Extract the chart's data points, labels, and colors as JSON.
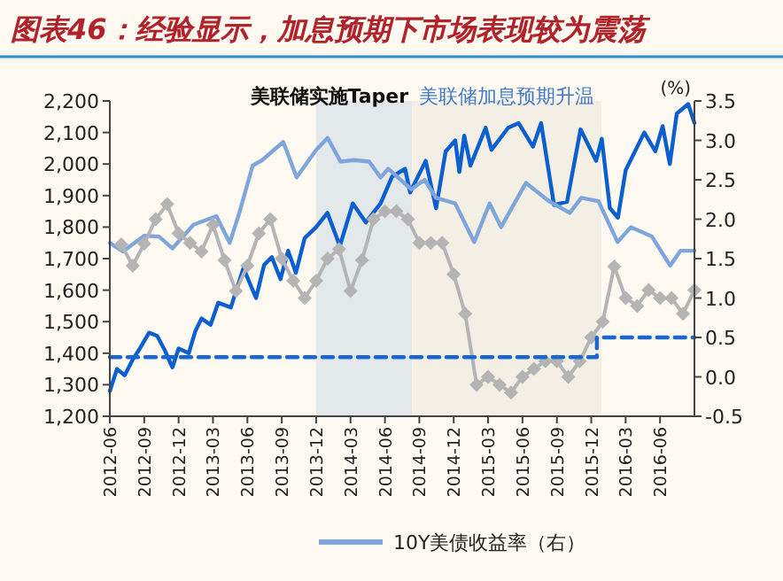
{
  "chart_data": {
    "type": "line",
    "title": "图表46：经验显示，加息预期下市场表现较为震荡",
    "y2label": "(%)",
    "xlim": [
      "2012-06",
      "2016-09"
    ],
    "xticks": [
      "2012-06",
      "2012-09",
      "2012-12",
      "2013-03",
      "2013-06",
      "2013-09",
      "2013-12",
      "2014-03",
      "2014-06",
      "2014-09",
      "2014-12",
      "2015-03",
      "2015-06",
      "2015-09",
      "2015-12",
      "2016-03",
      "2016-06"
    ],
    "ylim": [
      1200,
      2200
    ],
    "yticks": [
      {
        "value": 1200,
        "label": "1,200"
      },
      {
        "value": 1300,
        "label": "1,300"
      },
      {
        "value": 1400,
        "label": "1,400"
      },
      {
        "value": 1500,
        "label": "1,500"
      },
      {
        "value": 1600,
        "label": "1,600"
      },
      {
        "value": 1700,
        "label": "1,700"
      },
      {
        "value": 1800,
        "label": "1,800"
      },
      {
        "value": 1900,
        "label": "1,900"
      },
      {
        "value": 2000,
        "label": "2,000"
      },
      {
        "value": 2100,
        "label": "2,100"
      },
      {
        "value": 2200,
        "label": "2,200"
      }
    ],
    "y2lim": [
      -0.5,
      3.5
    ],
    "y2ticks": [
      -0.5,
      {
        "value": 0,
        "label": "0.0"
      },
      0.5,
      {
        "value": 1,
        "label": "1.0"
      },
      1.5,
      {
        "value": 2,
        "label": "2.0"
      },
      2.5,
      {
        "value": 3,
        "label": "3.0"
      },
      3.5
    ],
    "legend": "bottom",
    "grid": false,
    "bands": [
      {
        "axis": "x",
        "from": "2013-12",
        "to": "2014-08-12",
        "label": "美联储实施Taper",
        "color": "#e3e8ea"
      },
      {
        "axis": "x",
        "from": "2014-08-12",
        "to": "2015-12-28",
        "label": "美联储加息预期升温",
        "color": "#f3efe5"
      }
    ],
    "series": [
      {
        "type": "line",
        "color": "#0b5fcf",
        "axis": "y",
        "x": [
          "2012-06-01",
          "2012-06-20",
          "2012-07-10",
          "2012-08-01",
          "2012-08-20",
          "2012-09-14",
          "2012-10-05",
          "2012-10-25",
          "2012-11-15",
          "2012-12-01",
          "2012-12-28",
          "2013-01-15",
          "2013-02-01",
          "2013-02-25",
          "2013-03-15",
          "2013-04-18",
          "2013-05-21",
          "2013-06-24",
          "2013-07-15",
          "2013-08-05",
          "2013-08-28",
          "2013-09-18",
          "2013-10-08",
          "2013-11-01",
          "2013-12-01",
          "2013-12-31",
          "2014-02-03",
          "2014-03-07",
          "2014-04-11",
          "2014-05-20",
          "2014-06-20",
          "2014-07-24",
          "2014-08-07",
          "2014-09-18",
          "2014-10-15",
          "2014-11-10",
          "2014-12-05",
          "2014-12-16",
          "2014-12-29",
          "2015-01-15",
          "2015-02-25",
          "2015-03-10",
          "2015-04-24",
          "2015-05-21",
          "2015-06-29",
          "2015-07-20",
          "2015-08-24",
          "2015-09-28",
          "2015-11-03",
          "2015-12-14",
          "2015-12-29",
          "2016-01-20",
          "2016-02-11",
          "2016-03-01",
          "2016-04-20",
          "2016-05-19",
          "2016-06-08",
          "2016-06-27",
          "2016-07-15",
          "2016-08-15",
          "2016-09-01"
        ],
        "values": [
          1280,
          1350,
          1330,
          1380,
          1415,
          1465,
          1455,
          1410,
          1355,
          1415,
          1400,
          1470,
          1510,
          1490,
          1560,
          1545,
          1670,
          1575,
          1680,
          1705,
          1635,
          1725,
          1655,
          1765,
          1800,
          1845,
          1740,
          1875,
          1815,
          1875,
          1960,
          1985,
          1910,
          2010,
          1860,
          2040,
          2075,
          1975,
          2090,
          1995,
          2115,
          2045,
          2115,
          2130,
          2055,
          2130,
          1870,
          1880,
          2110,
          2010,
          2080,
          1860,
          1830,
          1980,
          2100,
          2040,
          2120,
          2000,
          2160,
          2190,
          2130
        ]
      },
      {
        "name": "10Y美债收益率（右）",
        "type": "line",
        "color": "#7fa6dc",
        "axis": "y2",
        "x": [
          "2012-06-01",
          "2012-07-05",
          "2012-09-01",
          "2012-10-10",
          "2012-11-15",
          "2013-01-10",
          "2013-03-10",
          "2013-04-15",
          "2013-05-10",
          "2013-06-15",
          "2013-07-10",
          "2013-09-05",
          "2013-10-10",
          "2013-12-01",
          "2014-01-01",
          "2014-02-05",
          "2014-03-10",
          "2014-04-20",
          "2014-05-20",
          "2014-06-10",
          "2014-08-10",
          "2014-09-15",
          "2014-10-15",
          "2014-12-05",
          "2015-01-25",
          "2015-03-05",
          "2015-04-05",
          "2015-06-10",
          "2015-08-10",
          "2015-10-05",
          "2015-11-05",
          "2015-12-20",
          "2016-02-10",
          "2016-03-15",
          "2016-05-10",
          "2016-06-28",
          "2016-07-25",
          "2016-09-01"
        ],
        "values": [
          1.7,
          1.59,
          1.79,
          1.78,
          1.63,
          1.93,
          2.04,
          1.7,
          2.08,
          2.68,
          2.75,
          2.98,
          2.53,
          2.88,
          3.03,
          2.73,
          2.75,
          2.73,
          2.53,
          2.64,
          2.38,
          2.5,
          2.27,
          2.2,
          1.71,
          2.2,
          1.9,
          2.46,
          2.23,
          2.08,
          2.27,
          2.23,
          1.71,
          1.9,
          1.78,
          1.41,
          1.6,
          1.6
        ]
      },
      {
        "type": "line",
        "color": "#b4b4b4",
        "axis": "y2",
        "marker": "diamond",
        "x": [
          "2012-07",
          "2012-08",
          "2012-09",
          "2012-10",
          "2012-11",
          "2012-12",
          "2013-01",
          "2013-02",
          "2013-03",
          "2013-04",
          "2013-05",
          "2013-06",
          "2013-07",
          "2013-08",
          "2013-09",
          "2013-10",
          "2013-11",
          "2013-12",
          "2014-01",
          "2014-02",
          "2014-03",
          "2014-04",
          "2014-05",
          "2014-06",
          "2014-07",
          "2014-08",
          "2014-09",
          "2014-10",
          "2014-11",
          "2014-12",
          "2015-01",
          "2015-02",
          "2015-03",
          "2015-04",
          "2015-05",
          "2015-06",
          "2015-07",
          "2015-08",
          "2015-09",
          "2015-10",
          "2015-11",
          "2015-12",
          "2016-01",
          "2016-02",
          "2016-03",
          "2016-04",
          "2016-05",
          "2016-06",
          "2016-07",
          "2016-08",
          "2016-09"
        ],
        "values": [
          1.68,
          1.41,
          1.69,
          2.0,
          2.19,
          1.82,
          1.7,
          1.59,
          1.93,
          1.48,
          1.09,
          1.41,
          1.82,
          2.0,
          1.5,
          1.22,
          1.0,
          1.22,
          1.5,
          1.62,
          1.09,
          1.48,
          2.0,
          2.1,
          2.1,
          2.0,
          1.7,
          1.7,
          1.7,
          1.3,
          0.8,
          -0.1,
          0.0,
          -0.1,
          -0.2,
          0.0,
          0.1,
          0.2,
          0.2,
          0.0,
          0.2,
          0.5,
          0.7,
          1.4,
          1.0,
          0.9,
          1.1,
          1.0,
          1.0,
          0.8,
          1.1
        ]
      },
      {
        "type": "step",
        "color": "#1a66d1",
        "axis": "y2",
        "line_style": "dashed",
        "x": [
          "2012-06-01",
          "2015-12-16",
          "2016-09-01"
        ],
        "values": [
          0.25,
          0.5,
          0.5
        ]
      }
    ]
  }
}
